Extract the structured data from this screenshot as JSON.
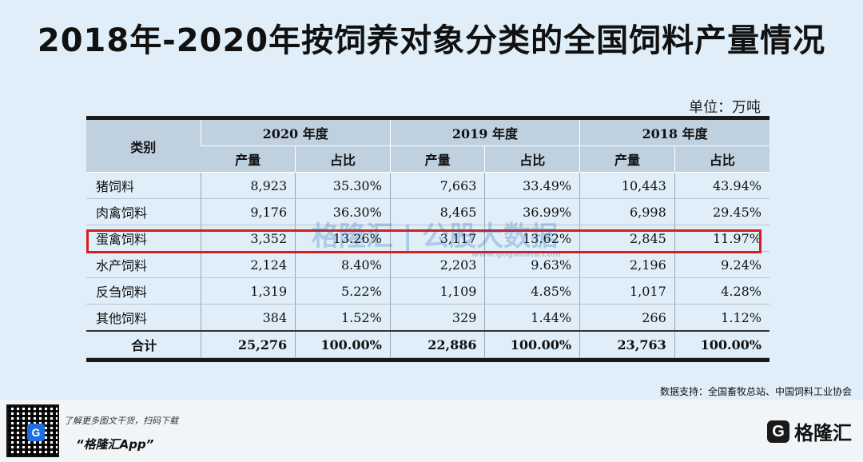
{
  "title": "2018年-2020年按饲养对象分类的全国饲料产量情况",
  "unit": "单位：万吨",
  "table": {
    "category_header": "类别",
    "years": [
      "2020 年度",
      "2019 年度",
      "2018 年度"
    ],
    "sub_headers": [
      "产量",
      "占比"
    ],
    "rows": [
      {
        "category": "猪饲料",
        "cells": [
          "8,923",
          "35.30%",
          "7,663",
          "33.49%",
          "10,443",
          "43.94%"
        ]
      },
      {
        "category": "肉禽饲料",
        "cells": [
          "9,176",
          "36.30%",
          "8,465",
          "36.99%",
          "6,998",
          "29.45%"
        ]
      },
      {
        "category": "蛋禽饲料",
        "cells": [
          "3,352",
          "13.26%",
          "3,117",
          "13.62%",
          "2,845",
          "11.97%"
        ]
      },
      {
        "category": "水产饲料",
        "cells": [
          "2,124",
          "8.40%",
          "2,203",
          "9.63%",
          "2,196",
          "9.24%"
        ]
      },
      {
        "category": "反刍饲料",
        "cells": [
          "1,319",
          "5.22%",
          "1,109",
          "4.85%",
          "1,017",
          "4.28%"
        ]
      },
      {
        "category": "其他饲料",
        "cells": [
          "384",
          "1.52%",
          "329",
          "1.44%",
          "266",
          "1.12%"
        ]
      }
    ],
    "total": {
      "category": "合计",
      "cells": [
        "25,276",
        "100.00%",
        "22,886",
        "100.00%",
        "23,763",
        "100.00%"
      ]
    }
  },
  "watermark": {
    "main": "格隆汇 | 公股大数据",
    "sub": "www.gogudata.com"
  },
  "source": "数据支持：全国畜牧总站、中国饲料工业协会",
  "footer": {
    "promo": "了解更多图文干货，扫码下载",
    "app_name": "“格隆汇App”",
    "brand": "格隆汇",
    "qr_logo": "G"
  },
  "colors": {
    "header_bg": "#bfd0de",
    "highlight": "#d42020",
    "page_bg": "#dfeef8"
  }
}
